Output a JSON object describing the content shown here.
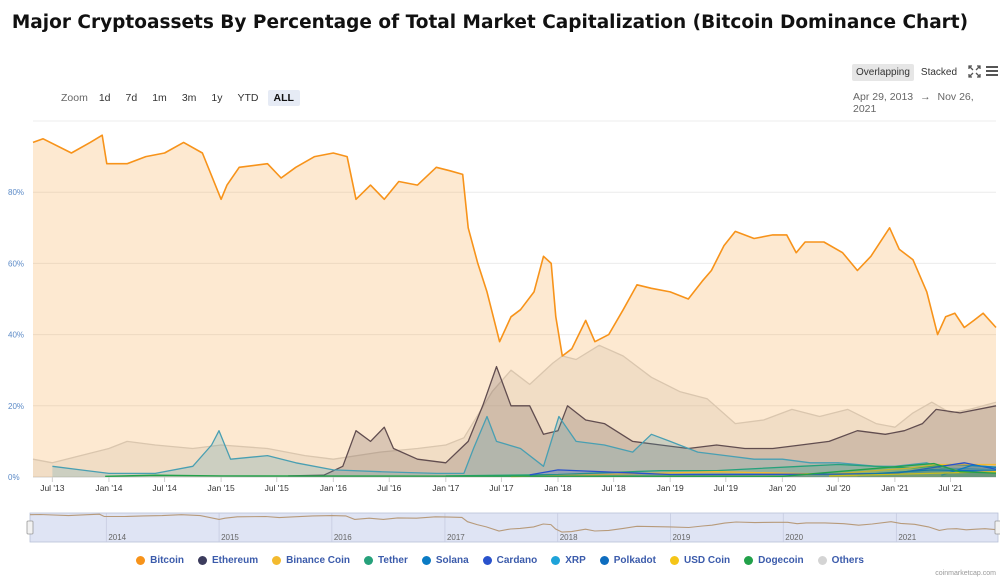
{
  "title": "Major Cryptoassets By Percentage of Total Market Capitalization (Bitcoin Dominance Chart)",
  "zoom": {
    "label": "Zoom",
    "buttons": [
      "1d",
      "7d",
      "1m",
      "3m",
      "1y",
      "YTD",
      "ALL"
    ],
    "active": "ALL"
  },
  "modes": {
    "overlapping": "Overlapping",
    "stacked": "Stacked",
    "active": "Overlapping"
  },
  "date_range": {
    "from": "Apr 29, 2013",
    "arrow": "→",
    "to": "Nov 26, 2021"
  },
  "credit": "coinmarketcap.com",
  "colors": {
    "Bitcoin": "#f7931a",
    "Ethereum": "#3c3c5d",
    "Binance Coin": "#f3ba2f",
    "Tether": "#26a17b",
    "Solana": "#0b7bc4",
    "Cardano": "#2952cc",
    "XRP": "#1ea3d9",
    "Polkadot": "#0e6dbf",
    "USD Coin": "#f5c518",
    "Dogecoin": "#22a14a",
    "Others": "#d4d4d4"
  },
  "chart_data": {
    "type": "area",
    "title": "Major Cryptoassets By Percentage of Total Market Capitalization (Bitcoin Dominance Chart)",
    "x_range": [
      "2013-04-29",
      "2021-11-26"
    ],
    "ylim": [
      0,
      100
    ],
    "y_ticks": [
      "0%",
      "20%",
      "40%",
      "60%",
      "80%"
    ],
    "x_ticks": [
      {
        "label": "Jul '13",
        "date": "2013-07-01"
      },
      {
        "label": "Jan '14",
        "date": "2014-01-01"
      },
      {
        "label": "Jul '14",
        "date": "2014-07-01"
      },
      {
        "label": "Jan '15",
        "date": "2015-01-01"
      },
      {
        "label": "Jul '15",
        "date": "2015-07-01"
      },
      {
        "label": "Jan '16",
        "date": "2016-01-01"
      },
      {
        "label": "Jul '16",
        "date": "2016-07-01"
      },
      {
        "label": "Jan '17",
        "date": "2017-01-01"
      },
      {
        "label": "Jul '17",
        "date": "2017-07-01"
      },
      {
        "label": "Jan '18",
        "date": "2018-01-01"
      },
      {
        "label": "Jul '18",
        "date": "2018-07-01"
      },
      {
        "label": "Jan '19",
        "date": "2019-01-01"
      },
      {
        "label": "Jul '19",
        "date": "2019-07-01"
      },
      {
        "label": "Jan '20",
        "date": "2020-01-01"
      },
      {
        "label": "Jul '20",
        "date": "2020-07-01"
      },
      {
        "label": "Jan '21",
        "date": "2021-01-01"
      },
      {
        "label": "Jul '21",
        "date": "2021-07-01"
      }
    ],
    "navigator_years": [
      "2014",
      "2015",
      "2016",
      "2017",
      "2018",
      "2019",
      "2020",
      "2021"
    ],
    "legend": [
      "Bitcoin",
      "Ethereum",
      "Binance Coin",
      "Tether",
      "Solana",
      "Cardano",
      "XRP",
      "Polkadot",
      "USD Coin",
      "Dogecoin",
      "Others"
    ],
    "grid": true,
    "series": [
      {
        "name": "Others",
        "points": [
          [
            "2013-04-29",
            5
          ],
          [
            "2013-07-01",
            4
          ],
          [
            "2013-10-01",
            6
          ],
          [
            "2014-01-01",
            8
          ],
          [
            "2014-03-01",
            10
          ],
          [
            "2014-06-01",
            9
          ],
          [
            "2014-10-01",
            8
          ],
          [
            "2015-01-01",
            9
          ],
          [
            "2015-06-01",
            8
          ],
          [
            "2015-10-01",
            6
          ],
          [
            "2016-01-01",
            5
          ],
          [
            "2016-06-01",
            7
          ],
          [
            "2016-10-01",
            8
          ],
          [
            "2017-01-01",
            9
          ],
          [
            "2017-03-01",
            11
          ],
          [
            "2017-06-01",
            24
          ],
          [
            "2017-08-01",
            30
          ],
          [
            "2017-10-01",
            26
          ],
          [
            "2017-12-15",
            32
          ],
          [
            "2018-01-15",
            34
          ],
          [
            "2018-03-01",
            33
          ],
          [
            "2018-05-15",
            37
          ],
          [
            "2018-08-01",
            34
          ],
          [
            "2018-11-01",
            28
          ],
          [
            "2019-02-01",
            24
          ],
          [
            "2019-05-01",
            22
          ],
          [
            "2019-08-01",
            15
          ],
          [
            "2019-11-01",
            16
          ],
          [
            "2020-02-01",
            19
          ],
          [
            "2020-05-01",
            17
          ],
          [
            "2020-08-01",
            19
          ],
          [
            "2020-11-01",
            15
          ],
          [
            "2021-01-01",
            14
          ],
          [
            "2021-03-01",
            18
          ],
          [
            "2021-05-01",
            21
          ],
          [
            "2021-07-01",
            18
          ],
          [
            "2021-09-01",
            19
          ],
          [
            "2021-11-26",
            21
          ]
        ]
      },
      {
        "name": "Ethereum",
        "points": [
          [
            "2015-08-07",
            0.3
          ],
          [
            "2015-12-01",
            0.5
          ],
          [
            "2016-02-01",
            3
          ],
          [
            "2016-03-15",
            13
          ],
          [
            "2016-05-01",
            10
          ],
          [
            "2016-06-15",
            14
          ],
          [
            "2016-07-15",
            8
          ],
          [
            "2016-10-01",
            5
          ],
          [
            "2017-01-01",
            4
          ],
          [
            "2017-03-15",
            10
          ],
          [
            "2017-05-01",
            20
          ],
          [
            "2017-06-15",
            31
          ],
          [
            "2017-08-01",
            20
          ],
          [
            "2017-10-01",
            20
          ],
          [
            "2017-11-15",
            12
          ],
          [
            "2018-01-01",
            13
          ],
          [
            "2018-02-01",
            20
          ],
          [
            "2018-04-01",
            16
          ],
          [
            "2018-06-01",
            15
          ],
          [
            "2018-09-01",
            10
          ],
          [
            "2018-12-01",
            9
          ],
          [
            "2019-03-01",
            8
          ],
          [
            "2019-06-01",
            9
          ],
          [
            "2019-09-01",
            8
          ],
          [
            "2019-12-01",
            8
          ],
          [
            "2020-03-01",
            9
          ],
          [
            "2020-06-01",
            10
          ],
          [
            "2020-09-01",
            13
          ],
          [
            "2020-12-01",
            12
          ],
          [
            "2021-02-01",
            13
          ],
          [
            "2021-04-01",
            15
          ],
          [
            "2021-05-15",
            19
          ],
          [
            "2021-08-01",
            18
          ],
          [
            "2021-11-26",
            20
          ]
        ]
      },
      {
        "name": "XRP",
        "points": [
          [
            "2013-07-01",
            3
          ],
          [
            "2013-10-01",
            2
          ],
          [
            "2014-01-01",
            1
          ],
          [
            "2014-06-01",
            1
          ],
          [
            "2014-10-01",
            3
          ],
          [
            "2014-12-01",
            9
          ],
          [
            "2014-12-25",
            13
          ],
          [
            "2015-02-01",
            5
          ],
          [
            "2015-06-01",
            6
          ],
          [
            "2015-09-01",
            4
          ],
          [
            "2016-01-01",
            2
          ],
          [
            "2016-06-01",
            1.5
          ],
          [
            "2016-12-01",
            1
          ],
          [
            "2017-03-01",
            1
          ],
          [
            "2017-04-01",
            8
          ],
          [
            "2017-05-15",
            17
          ],
          [
            "2017-06-15",
            10
          ],
          [
            "2017-09-01",
            8
          ],
          [
            "2017-11-15",
            3
          ],
          [
            "2018-01-04",
            17
          ],
          [
            "2018-03-01",
            10
          ],
          [
            "2018-06-01",
            9
          ],
          [
            "2018-09-01",
            7
          ],
          [
            "2018-11-01",
            12
          ],
          [
            "2019-01-01",
            10
          ],
          [
            "2019-04-01",
            7
          ],
          [
            "2019-07-01",
            6
          ],
          [
            "2019-10-01",
            5
          ],
          [
            "2020-01-01",
            5
          ],
          [
            "2020-04-01",
            4
          ],
          [
            "2020-07-01",
            4
          ],
          [
            "2020-11-01",
            3
          ],
          [
            "2021-01-01",
            3
          ],
          [
            "2021-04-15",
            4
          ],
          [
            "2021-06-01",
            2.5
          ],
          [
            "2021-09-01",
            2.3
          ],
          [
            "2021-11-26",
            2
          ]
        ]
      },
      {
        "name": "Bitcoin",
        "points": [
          [
            "2013-04-29",
            94
          ],
          [
            "2013-06-01",
            95
          ],
          [
            "2013-09-01",
            91
          ],
          [
            "2013-11-01",
            94
          ],
          [
            "2013-12-10",
            96
          ],
          [
            "2013-12-25",
            88
          ],
          [
            "2014-03-01",
            88
          ],
          [
            "2014-05-01",
            90
          ],
          [
            "2014-07-01",
            91
          ],
          [
            "2014-09-01",
            94
          ],
          [
            "2014-11-01",
            91
          ],
          [
            "2015-01-01",
            78
          ],
          [
            "2015-01-20",
            82
          ],
          [
            "2015-03-01",
            87
          ],
          [
            "2015-06-01",
            88
          ],
          [
            "2015-07-15",
            84
          ],
          [
            "2015-09-01",
            87
          ],
          [
            "2015-11-01",
            90
          ],
          [
            "2016-01-01",
            91
          ],
          [
            "2016-02-15",
            90
          ],
          [
            "2016-03-15",
            78
          ],
          [
            "2016-05-01",
            82
          ],
          [
            "2016-06-15",
            78
          ],
          [
            "2016-08-01",
            83
          ],
          [
            "2016-10-01",
            82
          ],
          [
            "2016-12-01",
            87
          ],
          [
            "2017-01-15",
            86
          ],
          [
            "2017-02-25",
            85
          ],
          [
            "2017-03-15",
            70
          ],
          [
            "2017-04-15",
            60
          ],
          [
            "2017-05-15",
            52
          ],
          [
            "2017-06-25",
            38
          ],
          [
            "2017-08-01",
            45
          ],
          [
            "2017-09-01",
            47
          ],
          [
            "2017-10-15",
            52
          ],
          [
            "2017-11-15",
            62
          ],
          [
            "2017-12-10",
            60
          ],
          [
            "2017-12-25",
            45
          ],
          [
            "2018-01-15",
            34
          ],
          [
            "2018-02-15",
            36
          ],
          [
            "2018-04-01",
            44
          ],
          [
            "2018-05-01",
            38
          ],
          [
            "2018-06-15",
            40
          ],
          [
            "2018-08-01",
            47
          ],
          [
            "2018-09-15",
            54
          ],
          [
            "2018-11-01",
            53
          ],
          [
            "2019-01-01",
            52
          ],
          [
            "2019-03-01",
            50
          ],
          [
            "2019-04-15",
            55
          ],
          [
            "2019-05-15",
            58
          ],
          [
            "2019-06-25",
            65
          ],
          [
            "2019-08-01",
            69
          ],
          [
            "2019-10-01",
            67
          ],
          [
            "2019-12-01",
            68
          ],
          [
            "2020-01-15",
            68
          ],
          [
            "2020-02-15",
            63
          ],
          [
            "2020-03-15",
            66
          ],
          [
            "2020-05-15",
            66
          ],
          [
            "2020-07-15",
            63
          ],
          [
            "2020-09-01",
            58
          ],
          [
            "2020-10-15",
            62
          ],
          [
            "2020-12-15",
            70
          ],
          [
            "2021-01-15",
            64
          ],
          [
            "2021-03-01",
            61
          ],
          [
            "2021-04-15",
            52
          ],
          [
            "2021-05-20",
            40
          ],
          [
            "2021-06-15",
            45
          ],
          [
            "2021-07-15",
            46
          ],
          [
            "2021-08-15",
            42
          ],
          [
            "2021-09-15",
            44
          ],
          [
            "2021-10-15",
            46
          ],
          [
            "2021-11-26",
            42
          ]
        ]
      },
      {
        "name": "Tether",
        "points": [
          [
            "2017-01-01",
            0.3
          ],
          [
            "2018-01-01",
            0.7
          ],
          [
            "2018-12-01",
            1.8
          ],
          [
            "2019-06-01",
            1.8
          ],
          [
            "2020-03-01",
            3
          ],
          [
            "2020-07-01",
            3.5
          ],
          [
            "2020-11-01",
            3
          ],
          [
            "2021-03-01",
            2.5
          ],
          [
            "2021-07-01",
            3.5
          ],
          [
            "2021-11-26",
            2.8
          ]
        ]
      },
      {
        "name": "Binance Coin",
        "points": [
          [
            "2017-08-01",
            0.1
          ],
          [
            "2018-03-01",
            0.5
          ],
          [
            "2019-06-01",
            1.5
          ],
          [
            "2020-06-01",
            0.8
          ],
          [
            "2021-02-15",
            2.5
          ],
          [
            "2021-05-15",
            3.5
          ],
          [
            "2021-09-01",
            3.5
          ],
          [
            "2021-11-26",
            3.5
          ]
        ]
      },
      {
        "name": "Cardano",
        "points": [
          [
            "2017-10-01",
            0.6
          ],
          [
            "2018-01-01",
            2
          ],
          [
            "2019-01-01",
            0.7
          ],
          [
            "2020-06-01",
            0.8
          ],
          [
            "2021-01-01",
            1
          ],
          [
            "2021-08-15",
            4
          ],
          [
            "2021-11-26",
            2.2
          ]
        ]
      },
      {
        "name": "Solana",
        "points": [
          [
            "2021-06-01",
            0.5
          ],
          [
            "2021-09-10",
            3.3
          ],
          [
            "2021-11-26",
            2.7
          ]
        ]
      },
      {
        "name": "Polkadot",
        "points": [
          [
            "2020-09-01",
            0.6
          ],
          [
            "2021-05-01",
            2
          ],
          [
            "2021-11-26",
            1.6
          ]
        ]
      },
      {
        "name": "USD Coin",
        "points": [
          [
            "2020-06-01",
            0.3
          ],
          [
            "2021-11-26",
            1.5
          ]
        ]
      },
      {
        "name": "Dogecoin",
        "points": [
          [
            "2013-12-20",
            0.2
          ],
          [
            "2014-06-01",
            0.5
          ],
          [
            "2015-01-01",
            0.3
          ],
          [
            "2020-01-01",
            0.2
          ],
          [
            "2021-05-08",
            3.8
          ],
          [
            "2021-08-01",
            1.5
          ],
          [
            "2021-11-26",
            1.1
          ]
        ]
      }
    ]
  }
}
